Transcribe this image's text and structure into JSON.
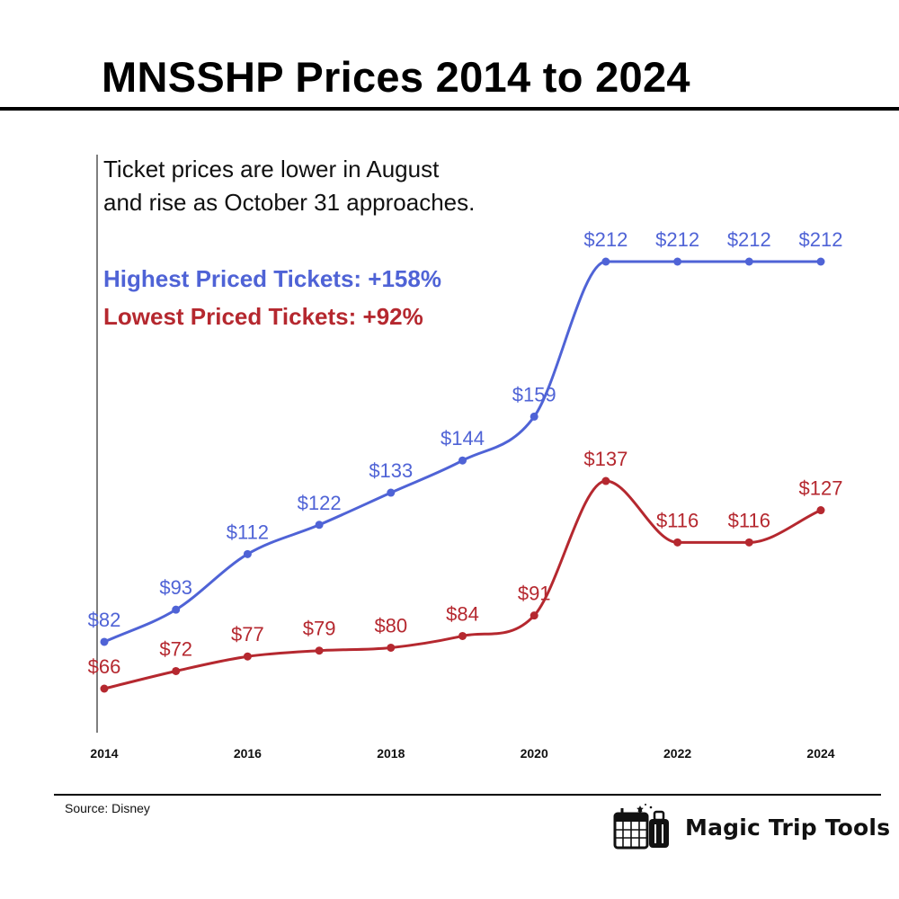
{
  "title": "MNSSHP Prices 2014 to 2024",
  "subtitle": {
    "line1": "Ticket prices are lower in August",
    "line2": "and rise as October 31 approaches."
  },
  "stats": {
    "highest": "Highest Priced Tickets: +158%",
    "lowest": "Lowest Priced Tickets: +92%"
  },
  "footer": {
    "source": "Source: Disney",
    "brand": "Magic Trip Tools"
  },
  "colors": {
    "high": "#4f63d6",
    "low": "#b5282f",
    "axis": "#555555"
  },
  "chart_data": {
    "type": "line",
    "title": "MNSSHP Prices 2014 to 2024",
    "x": [
      2014,
      2015,
      2016,
      2017,
      2018,
      2019,
      2020,
      2021,
      2022,
      2023,
      2024
    ],
    "x_tick_labels": [
      "2014",
      "2016",
      "2018",
      "2020",
      "2022",
      "2024"
    ],
    "series": [
      {
        "name": "Highest Priced Tickets",
        "color": "#4f63d6",
        "values": [
          82,
          93,
          112,
          122,
          133,
          144,
          159,
          212,
          212,
          212,
          212
        ],
        "labels": [
          "$82",
          "$93",
          "$112",
          "$122",
          "$133",
          "$144",
          "$159",
          "$212",
          "$212",
          "$212",
          "$212"
        ]
      },
      {
        "name": "Lowest Priced Tickets",
        "color": "#b5282f",
        "values": [
          66,
          72,
          77,
          79,
          80,
          84,
          91,
          137,
          116,
          116,
          127
        ],
        "labels": [
          "$66",
          "$72",
          "$77",
          "$79",
          "$80",
          "$84",
          "$91",
          "$137",
          "$116",
          "$116",
          "$127"
        ]
      }
    ],
    "xlabel": "",
    "ylabel": "",
    "ylim": [
      40,
      230
    ],
    "grid": false,
    "legend": "none"
  }
}
